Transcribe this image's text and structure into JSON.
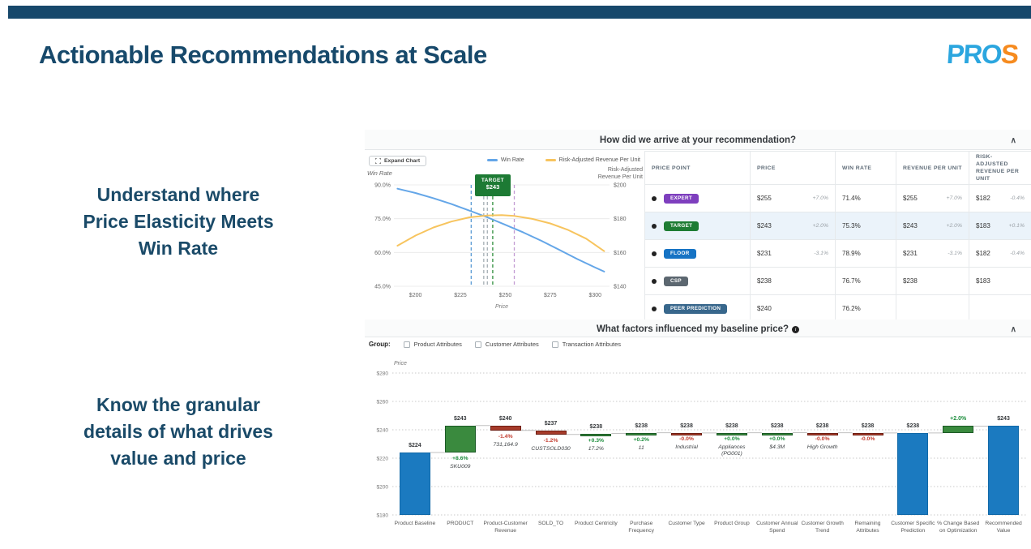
{
  "header": {
    "title": "Actionable Recommendations at Scale",
    "logo_letters": [
      {
        "ch": "P",
        "c": "#2BA6DF"
      },
      {
        "ch": "R",
        "c": "#2BA6DF"
      },
      {
        "ch": "O",
        "c": "#2BA6DF"
      },
      {
        "ch": "S",
        "c": "#F68B1F"
      }
    ]
  },
  "left_panel": {
    "caption1_lines": [
      "Understand where",
      "Price Elasticity Meets",
      "Win Rate"
    ],
    "caption2_lines": [
      "Know the granular",
      "details of what drives",
      "value and price"
    ]
  },
  "recommendation_panel": {
    "title": "How did we arrive at your recommendation?",
    "chevron": "∧",
    "expand_button": "Expand Chart",
    "legend": [
      {
        "label": "Win Rate",
        "color": "#64A6E8"
      },
      {
        "label": "Risk-Adjusted Revenue Per Unit",
        "color": "#F7C45E"
      }
    ],
    "table": {
      "columns": [
        "PRICE POINT",
        "PRICE",
        "WIN RATE",
        "REVENUE PER UNIT",
        "RISK-ADJUSTED REVENUE PER UNIT"
      ],
      "rows": [
        {
          "badge": "EXPERT",
          "badge_color": "#7E3FBE",
          "price": "$255",
          "price_delta": "+7.0%",
          "win_rate": "71.4%",
          "rev": "$255",
          "rev_delta": "+7.0%",
          "risk": "$182",
          "risk_delta": "-0.4%",
          "highlight": false
        },
        {
          "badge": "TARGET",
          "badge_color": "#1E7C33",
          "price": "$243",
          "price_delta": "+2.0%",
          "win_rate": "75.3%",
          "rev": "$243",
          "rev_delta": "+2.0%",
          "risk": "$183",
          "risk_delta": "+0.1%",
          "highlight": true
        },
        {
          "badge": "FLOOR",
          "badge_color": "#1673C4",
          "price": "$231",
          "price_delta": "-3.1%",
          "win_rate": "78.9%",
          "rev": "$231",
          "rev_delta": "-3.1%",
          "risk": "$182",
          "risk_delta": "-0.4%",
          "highlight": false
        },
        {
          "badge": "CSP",
          "badge_color": "#5C6770",
          "price": "$238",
          "price_delta": "",
          "win_rate": "76.7%",
          "rev": "$238",
          "rev_delta": "",
          "risk": "$183",
          "risk_delta": "",
          "highlight": false
        },
        {
          "badge": "PEER PREDICTION",
          "badge_color": "#38678C",
          "price": "$240",
          "price_delta": "",
          "win_rate": "76.2%",
          "rev": "",
          "rev_delta": "",
          "risk": "",
          "risk_delta": "",
          "highlight": false
        }
      ]
    }
  },
  "factors_panel": {
    "title": "What factors influenced my baseline price?",
    "info_icon": "i",
    "chevron": "∧",
    "group_label": "Group:",
    "group_options": [
      "Product Attributes",
      "Customer Attributes",
      "Transaction Attributes"
    ]
  },
  "chart_data": [
    {
      "type": "line",
      "title": "Win Rate vs Risk-Adjusted Revenue Per Unit by Price",
      "xlabel": "Price",
      "x_tick_values": [
        200,
        225,
        250,
        275,
        300
      ],
      "x_tick_labels": [
        "$200",
        "$225",
        "$250",
        "$275",
        "$300"
      ],
      "x_range": [
        188,
        308
      ],
      "left_axis": {
        "label": "Win Rate",
        "tick_values": [
          90,
          75,
          60,
          45
        ],
        "tick_labels": [
          "90.0%",
          "75.0%",
          "60.0%",
          "45.0%"
        ],
        "range": [
          45,
          90
        ]
      },
      "right_axis": {
        "label_lines": [
          "Risk-Adjusted",
          "Revenue Per Unit"
        ],
        "tick_values": [
          200,
          180,
          160,
          140
        ],
        "tick_labels": [
          "$200",
          "$180",
          "$160",
          "$140"
        ],
        "range": [
          140,
          200
        ]
      },
      "series": [
        {
          "name": "Win Rate",
          "axis": "left",
          "color": "#64A6E8",
          "x": [
            190,
            200,
            210,
            220,
            230,
            240,
            250,
            260,
            270,
            280,
            290,
            300,
            305
          ],
          "y": [
            88.3,
            86.4,
            84.1,
            81.5,
            78.6,
            75.6,
            72.3,
            68.9,
            65.2,
            61.2,
            57.1,
            53.3,
            51.5
          ]
        },
        {
          "name": "Risk-Adjusted Revenue Per Unit",
          "axis": "right",
          "color": "#F7C45E",
          "x": [
            190,
            200,
            210,
            220,
            230,
            240,
            248,
            255,
            265,
            275,
            285,
            295,
            305
          ],
          "y": [
            164.0,
            170.0,
            174.8,
            178.3,
            180.8,
            181.9,
            182.1,
            181.6,
            179.9,
            177.2,
            173.3,
            168.2,
            160.8
          ]
        }
      ],
      "markers": [
        {
          "price": 231,
          "name": "FLOOR",
          "color": "#5B9BD5"
        },
        {
          "price": 238,
          "name": "CSP",
          "color": "#A4ADB3"
        },
        {
          "price": 240,
          "name": "PEER PREDICTION",
          "color": "#A4ADB3"
        },
        {
          "price": 243,
          "name": "TARGET",
          "color": "#2F8F3C"
        },
        {
          "price": 255,
          "name": "EXPERT",
          "color": "#C39BD3"
        }
      ],
      "annotation": {
        "label": "TARGET",
        "value": "$243",
        "price": 243,
        "color": "#1D7A34"
      },
      "grid": true,
      "legend_position": "top"
    },
    {
      "type": "bar",
      "subtype": "waterfall",
      "ylabel": "Price",
      "y_tick_values": [
        280,
        260,
        240,
        220,
        200,
        180
      ],
      "y_tick_labels": [
        "$280",
        "$260",
        "$240",
        "$220",
        "$200",
        "$180"
      ],
      "ylim": [
        180,
        280
      ],
      "grid": true,
      "colors": {
        "total": "#1B7AC0",
        "total_border": "#1169A8",
        "increase": "#3A8A3E",
        "increase_border": "#1C5A26",
        "decrease": "#A63B2A",
        "decrease_border": "#6E1F14"
      },
      "bars": [
        {
          "label": "Product Baseline",
          "kind": "total",
          "start": 180,
          "end": 224,
          "value_label": "$224",
          "delta": "",
          "note": ""
        },
        {
          "label": "PRODUCT",
          "kind": "increase",
          "start": 224,
          "end": 243,
          "value_label": "$243",
          "delta": "+8.6%",
          "note": "SKU009"
        },
        {
          "label": "Product-Customer Revenue",
          "kind": "decrease",
          "start": 243,
          "end": 239.6,
          "value_label": "$240",
          "delta": "-1.4%",
          "note": "731,164.9"
        },
        {
          "label": "SOLD_TO",
          "kind": "decrease",
          "start": 239.6,
          "end": 236.7,
          "value_label": "$237",
          "delta": "-1.2%",
          "note": "CUSTSOLD030"
        },
        {
          "label": "Product Centricity",
          "kind": "increase",
          "start": 236.7,
          "end": 237.4,
          "value_label": "$238",
          "delta": "+0.3%",
          "note": "17.2%"
        },
        {
          "label": "Purchase Frequency",
          "kind": "increase",
          "start": 237.4,
          "end": 237.9,
          "value_label": "$238",
          "delta": "+0.2%",
          "note": "11"
        },
        {
          "label": "Customer Type",
          "kind": "decrease",
          "start": 237.9,
          "end": 237.8,
          "value_label": "$238",
          "delta": "-0.0%",
          "note": "Industrial"
        },
        {
          "label": "Product Group",
          "kind": "increase",
          "start": 237.8,
          "end": 237.9,
          "value_label": "$238",
          "delta": "+0.0%",
          "note": "Appliances (PG001)"
        },
        {
          "label": "Customer Annual Spend",
          "kind": "increase",
          "start": 237.9,
          "end": 238.0,
          "value_label": "$238",
          "delta": "+0.0%",
          "note": "$4.3M"
        },
        {
          "label": "Customer Growth Trend",
          "kind": "decrease",
          "start": 238.0,
          "end": 237.9,
          "value_label": "$238",
          "delta": "-0.0%",
          "note": "High Growth"
        },
        {
          "label": "Remaining Attributes",
          "kind": "decrease",
          "start": 237.9,
          "end": 237.8,
          "value_label": "$238",
          "delta": "-0.0%",
          "note": ""
        },
        {
          "label": "Customer Specific Prediction",
          "kind": "total",
          "start": 180,
          "end": 237.8,
          "value_label": "$238",
          "delta": "",
          "note": ""
        },
        {
          "label": "% Change Based on Optimization",
          "kind": "increase",
          "start": 237.8,
          "end": 242.6,
          "value_label": "+2.0%",
          "value_label_green": true,
          "delta": "",
          "note": ""
        },
        {
          "label": "Recommended Value",
          "kind": "total",
          "start": 180,
          "end": 242.6,
          "value_label": "$243",
          "delta": "",
          "note": ""
        }
      ]
    }
  ]
}
